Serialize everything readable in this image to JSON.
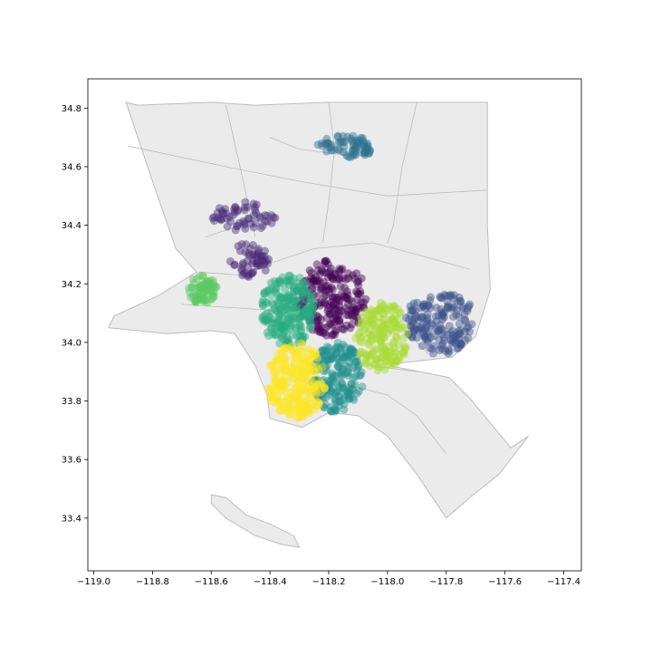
{
  "chart_data": {
    "type": "scatter",
    "title": "",
    "xlabel": "",
    "ylabel": "",
    "xlim": [
      -119.02,
      -117.34
    ],
    "ylim": [
      33.22,
      34.9
    ],
    "xticks": [
      -119.0,
      -118.8,
      -118.6,
      -118.4,
      -118.2,
      -118.0,
      -117.8,
      -117.6,
      -117.4
    ],
    "xtick_labels": [
      "−119.0",
      "−118.8",
      "−118.6",
      "−118.4",
      "−118.2",
      "−118.0",
      "−117.8",
      "−117.6",
      "−117.4"
    ],
    "yticks": [
      33.4,
      33.6,
      33.8,
      34.0,
      34.2,
      34.4,
      34.6,
      34.8
    ],
    "ytick_labels": [
      "33.4",
      "33.6",
      "33.8",
      "34.0",
      "34.2",
      "34.4",
      "34.6",
      "34.8"
    ],
    "grid": false,
    "legend": "none",
    "basemap": {
      "fill": "#ebebeb",
      "stroke": "#bdbdbd",
      "mainland": [
        [
          -118.89,
          34.82
        ],
        [
          -118.85,
          34.81
        ],
        [
          -118.6,
          34.82
        ],
        [
          -118.45,
          34.81
        ],
        [
          -118.2,
          34.82
        ],
        [
          -117.9,
          34.82
        ],
        [
          -117.66,
          34.82
        ],
        [
          -117.66,
          34.4
        ],
        [
          -117.65,
          34.18
        ],
        [
          -117.7,
          34.02
        ],
        [
          -117.78,
          33.95
        ],
        [
          -117.95,
          33.93
        ],
        [
          -117.99,
          33.92
        ],
        [
          -117.79,
          33.88
        ],
        [
          -117.72,
          33.81
        ],
        [
          -117.58,
          33.64
        ],
        [
          -117.52,
          33.68
        ],
        [
          -117.62,
          33.55
        ],
        [
          -117.72,
          33.47
        ],
        [
          -117.8,
          33.4
        ],
        [
          -117.9,
          33.55
        ],
        [
          -118.0,
          33.68
        ],
        [
          -118.1,
          33.75
        ],
        [
          -118.2,
          33.76
        ],
        [
          -118.29,
          33.71
        ],
        [
          -118.4,
          33.74
        ],
        [
          -118.41,
          33.82
        ],
        [
          -118.45,
          33.92
        ],
        [
          -118.52,
          34.03
        ],
        [
          -118.6,
          34.04
        ],
        [
          -118.75,
          34.03
        ],
        [
          -118.95,
          34.05
        ],
        [
          -118.93,
          34.09
        ],
        [
          -118.78,
          34.16
        ],
        [
          -118.65,
          34.24
        ],
        [
          -118.72,
          34.32
        ],
        [
          -118.8,
          34.55
        ]
      ],
      "island": [
        [
          -118.6,
          33.48
        ],
        [
          -118.55,
          33.47
        ],
        [
          -118.48,
          33.41
        ],
        [
          -118.4,
          33.38
        ],
        [
          -118.32,
          33.34
        ],
        [
          -118.3,
          33.3
        ],
        [
          -118.36,
          33.31
        ],
        [
          -118.45,
          33.34
        ],
        [
          -118.55,
          33.4
        ],
        [
          -118.6,
          33.45
        ]
      ],
      "boundaries": [
        [
          [
            -118.64,
            34.24
          ],
          [
            -118.5,
            34.23
          ],
          [
            -118.4,
            34.27
          ],
          [
            -118.25,
            34.32
          ],
          [
            -118.05,
            34.34
          ],
          [
            -117.9,
            34.3
          ],
          [
            -117.72,
            34.25
          ]
        ],
        [
          [
            -118.88,
            34.67
          ],
          [
            -118.55,
            34.6
          ],
          [
            -118.3,
            34.55
          ],
          [
            -118.0,
            34.5
          ],
          [
            -117.66,
            34.52
          ]
        ],
        [
          [
            -118.55,
            34.81
          ],
          [
            -118.52,
            34.68
          ],
          [
            -118.48,
            34.5
          ],
          [
            -118.45,
            34.36
          ]
        ],
        [
          [
            -118.2,
            34.82
          ],
          [
            -118.18,
            34.66
          ],
          [
            -118.2,
            34.48
          ],
          [
            -118.22,
            34.34
          ]
        ],
        [
          [
            -117.9,
            34.82
          ],
          [
            -117.95,
            34.6
          ],
          [
            -117.98,
            34.4
          ],
          [
            -118.0,
            34.34
          ]
        ],
        [
          [
            -118.4,
            34.7
          ],
          [
            -118.3,
            34.66
          ],
          [
            -118.15,
            34.64
          ],
          [
            -118.05,
            34.66
          ]
        ],
        [
          [
            -118.7,
            34.13
          ],
          [
            -118.55,
            34.12
          ],
          [
            -118.4,
            34.11
          ],
          [
            -118.25,
            34.08
          ]
        ],
        [
          [
            -118.3,
            33.98
          ],
          [
            -118.2,
            33.95
          ],
          [
            -118.05,
            33.92
          ],
          [
            -117.9,
            33.9
          ]
        ],
        [
          [
            -118.15,
            33.86
          ],
          [
            -118.0,
            33.82
          ],
          [
            -117.9,
            33.75
          ],
          [
            -117.8,
            33.62
          ]
        ],
        [
          [
            -118.1,
            34.1
          ],
          [
            -117.95,
            34.05
          ],
          [
            -117.85,
            33.95
          ]
        ],
        [
          [
            -118.35,
            33.9
          ],
          [
            -118.25,
            33.85
          ],
          [
            -118.15,
            33.8
          ]
        ],
        [
          [
            -118.62,
            34.36
          ],
          [
            -118.5,
            34.4
          ],
          [
            -118.4,
            34.45
          ]
        ]
      ]
    },
    "series": [
      {
        "color": "#440154",
        "cx": -118.19,
        "cy": 34.15,
        "rx": 0.12,
        "ry": 0.13,
        "n": 210,
        "seed": 11
      },
      {
        "color": "#472d7b",
        "cx": -118.49,
        "cy": 34.43,
        "rx": 0.11,
        "ry": 0.05,
        "n": 60,
        "seed": 12
      },
      {
        "color": "#482878",
        "cx": -118.47,
        "cy": 34.28,
        "rx": 0.07,
        "ry": 0.06,
        "n": 55,
        "seed": 13
      },
      {
        "color": "#3b528b",
        "cx": -117.82,
        "cy": 34.07,
        "rx": 0.12,
        "ry": 0.11,
        "n": 170,
        "seed": 14
      },
      {
        "color": "#2c728e",
        "cx": -118.14,
        "cy": 34.67,
        "rx": 0.1,
        "ry": 0.04,
        "n": 70,
        "seed": 15
      },
      {
        "color": "#21908d",
        "cx": -118.17,
        "cy": 33.88,
        "rx": 0.09,
        "ry": 0.12,
        "n": 200,
        "seed": 16
      },
      {
        "color": "#27ad81",
        "cx": -118.34,
        "cy": 34.11,
        "rx": 0.09,
        "ry": 0.13,
        "n": 230,
        "seed": 17
      },
      {
        "color": "#5ec962",
        "cx": -118.63,
        "cy": 34.18,
        "rx": 0.05,
        "ry": 0.05,
        "n": 80,
        "seed": 18
      },
      {
        "color": "#a8db34",
        "cx": -118.02,
        "cy": 34.02,
        "rx": 0.09,
        "ry": 0.12,
        "n": 180,
        "seed": 19
      },
      {
        "color": "#fde725",
        "cx": -118.31,
        "cy": 33.87,
        "rx": 0.1,
        "ry": 0.13,
        "n": 260,
        "seed": 20
      }
    ]
  }
}
